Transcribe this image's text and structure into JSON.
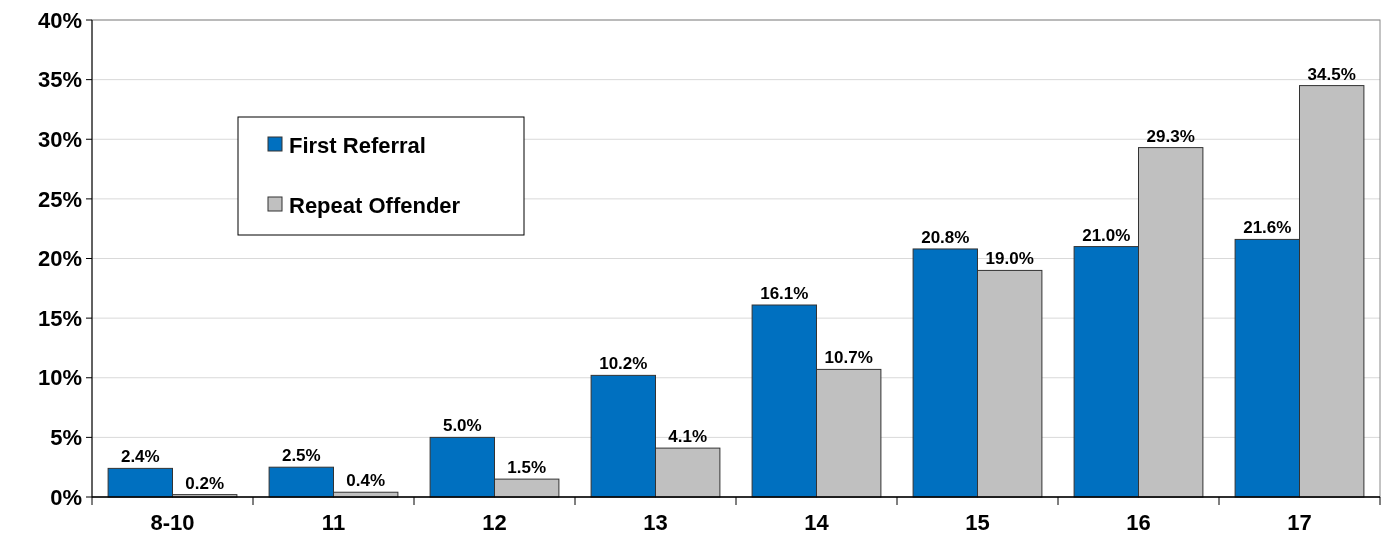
{
  "chart_data": {
    "type": "bar",
    "categories": [
      "8-10",
      "11",
      "12",
      "13",
      "14",
      "15",
      "16",
      "17"
    ],
    "series": [
      {
        "name": "First Referral",
        "color": "#0070c0",
        "values": [
          2.4,
          2.5,
          5.0,
          10.2,
          16.1,
          20.8,
          21.0,
          21.6
        ],
        "value_labels": [
          "2.4%",
          "2.5%",
          "5.0%",
          "10.2%",
          "16.1%",
          "20.8%",
          "21.0%",
          "21.6%"
        ]
      },
      {
        "name": "Repeat Offender",
        "color": "#c0c0c0",
        "values": [
          0.2,
          0.4,
          1.5,
          4.1,
          10.7,
          19.0,
          29.3,
          34.5
        ],
        "value_labels": [
          "0.2%",
          "0.4%",
          "1.5%",
          "4.1%",
          "10.7%",
          "19.0%",
          "29.3%",
          "34.5%"
        ]
      }
    ],
    "ylim": [
      0,
      40
    ],
    "yticks": [
      {
        "value": 0,
        "label": "0%"
      },
      {
        "value": 5,
        "label": "5%"
      },
      {
        "value": 10,
        "label": "10%"
      },
      {
        "value": 15,
        "label": "15%"
      },
      {
        "value": 20,
        "label": "20%"
      },
      {
        "value": 25,
        "label": "25%"
      },
      {
        "value": 30,
        "label": "30%"
      },
      {
        "value": 35,
        "label": "35%"
      },
      {
        "value": 40,
        "label": "40%"
      }
    ],
    "grid": "y",
    "legend": "top left"
  }
}
